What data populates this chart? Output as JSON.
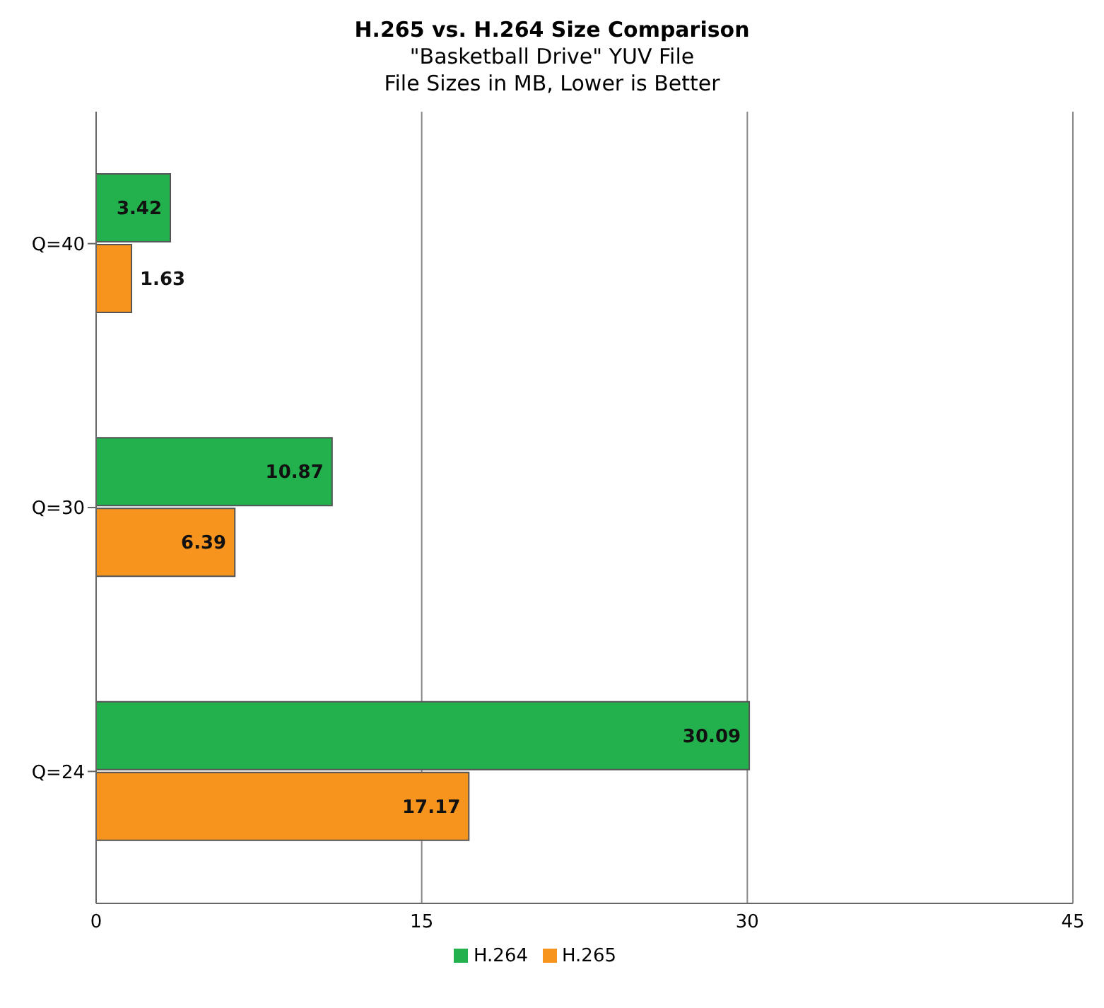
{
  "chart_data": {
    "type": "bar",
    "orientation": "horizontal",
    "title": "H.265 vs. H.264 Size Comparison",
    "subtitle": "\"Basketball Drive\" YUV File\nFile Sizes in MB, Lower is Better",
    "categories": [
      "Q=40",
      "Q=30",
      "Q=24"
    ],
    "series": [
      {
        "name": "H.264",
        "color": "#22b14c",
        "values": [
          3.42,
          10.87,
          30.09
        ]
      },
      {
        "name": "H.265",
        "color": "#f7941d",
        "values": [
          1.63,
          6.39,
          17.17
        ]
      }
    ],
    "xlim": [
      0,
      45
    ],
    "xticks": [
      0,
      15,
      30,
      45
    ],
    "grid": "x",
    "legend": "bottom",
    "data_labels": true
  }
}
